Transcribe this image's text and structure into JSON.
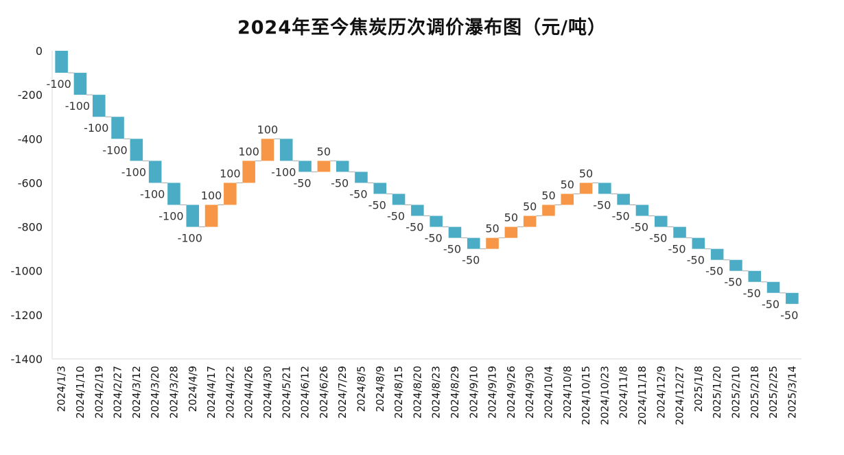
{
  "chart_data": {
    "type": "bar",
    "subtype": "waterfall",
    "title": "2024年至今焦炭历次调价瀑布图（元/吨）",
    "xlabel": "",
    "ylabel": "",
    "ylim": [
      -1400,
      0
    ],
    "yticks": [
      "0",
      "-200",
      "-400",
      "-600",
      "-800",
      "-1000",
      "-1200",
      "-1400"
    ],
    "grid": false,
    "colors": {
      "decrease": "#4bacc6",
      "increase": "#f79646",
      "connector": "#a6a6a6",
      "axis": "#d9d9d9"
    },
    "categories": [
      "2024/1/3",
      "2024/1/10",
      "2024/2/19",
      "2024/2/27",
      "2024/3/12",
      "2024/3/20",
      "2024/3/28",
      "2024/4/9",
      "2024/4/17",
      "2024/4/22",
      "2024/4/26",
      "2024/4/30",
      "2024/5/21",
      "2024/6/12",
      "2024/6/26",
      "2024/7/29",
      "2024/8/5",
      "2024/8/9",
      "2024/8/15",
      "2024/8/20",
      "2024/8/23",
      "2024/8/29",
      "2024/9/10",
      "2024/9/19",
      "2024/9/26",
      "2024/9/30",
      "2024/10/4",
      "2024/10/8",
      "2024/10/15",
      "2024/10/23",
      "2024/11/8",
      "2024/11/18",
      "2024/12/9",
      "2024/12/27",
      "2025/1/8",
      "2025/1/20",
      "2025/2/10",
      "2025/2/18",
      "2025/2/25",
      "2025/3/14"
    ],
    "values": [
      -100,
      -100,
      -100,
      -100,
      -100,
      -100,
      -100,
      -100,
      100,
      100,
      100,
      100,
      -100,
      -50,
      50,
      -50,
      -50,
      -50,
      -50,
      -50,
      -50,
      -50,
      -50,
      50,
      50,
      50,
      50,
      50,
      50,
      -50,
      -50,
      -50,
      -50,
      -50,
      -50,
      -50,
      -50,
      -50,
      -50,
      -50
    ],
    "labels": [
      "-100",
      "-100",
      "-100",
      "-100",
      "-100",
      "-100",
      "-100",
      "-100",
      "100",
      "100",
      "100",
      "100",
      "-100",
      "-50",
      "50",
      "-50",
      "-50",
      "-50",
      "-50",
      "-50",
      "-50",
      "-50",
      "-50",
      "50",
      "50",
      "50",
      "50",
      "50",
      "50",
      "-50",
      "-50",
      "-50",
      "-50",
      "-50",
      "-50",
      "-50",
      "-50",
      "-50",
      "-50",
      "-50"
    ]
  }
}
